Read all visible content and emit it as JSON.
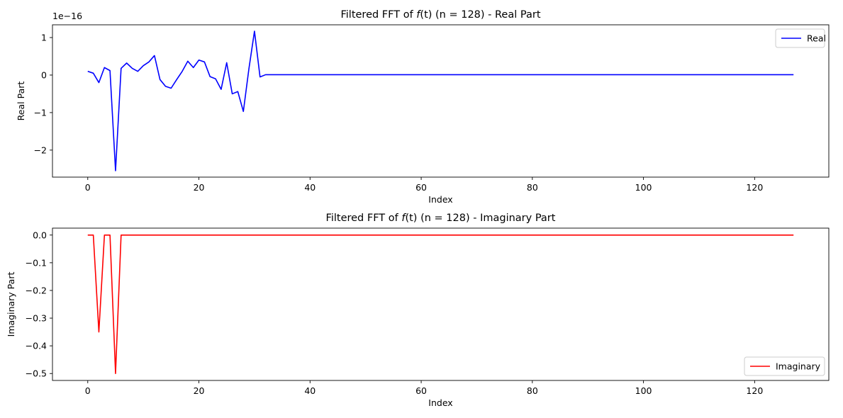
{
  "chart_data": [
    {
      "type": "line",
      "title": "Filtered FFT of f(t) (n = 128) - Real Part",
      "title_parts": {
        "prefix": "Filtered FFT of ",
        "func": "f",
        "arg": "(t)",
        "suffix": " (n = 128) - Real Part"
      },
      "xlabel": "Index",
      "ylabel": "Real Part",
      "offset_text": "1e−16",
      "xlim": [
        -6.35,
        133.35
      ],
      "ylim": [
        -2.72,
        1.34
      ],
      "xticks": [
        0,
        20,
        40,
        60,
        80,
        100,
        120
      ],
      "xtick_labels": [
        "0",
        "20",
        "40",
        "60",
        "80",
        "100",
        "120"
      ],
      "yticks": [
        -2,
        -1,
        0,
        1
      ],
      "ytick_labels": [
        "−2",
        "−1",
        "0",
        "1"
      ],
      "legend_position": "top-right",
      "series": [
        {
          "name": "Real",
          "color": "#0000ff",
          "x": [
            0,
            1,
            2,
            3,
            4,
            5,
            6,
            7,
            8,
            9,
            10,
            11,
            12,
            13,
            14,
            15,
            16,
            17,
            18,
            19,
            20,
            21,
            22,
            23,
            24,
            25,
            26,
            27,
            28,
            29,
            30,
            31,
            32,
            127
          ],
          "values": [
            0.1,
            0.05,
            -0.2,
            0.2,
            0.12,
            -2.55,
            0.18,
            0.32,
            0.18,
            0.1,
            0.25,
            0.35,
            0.52,
            -0.12,
            -0.3,
            -0.35,
            -0.12,
            0.1,
            0.37,
            0.2,
            0.4,
            0.35,
            -0.04,
            -0.1,
            -0.38,
            0.33,
            -0.5,
            -0.44,
            -0.97,
            0.17,
            1.17,
            -0.05,
            0.01,
            0.01
          ]
        }
      ]
    },
    {
      "type": "line",
      "title": "Filtered FFT of f(t) (n = 128) - Imaginary Part",
      "title_parts": {
        "prefix": "Filtered FFT of ",
        "func": "f",
        "arg": "(t)",
        "suffix": " (n = 128) - Imaginary Part"
      },
      "xlabel": "Index",
      "ylabel": "Imaginary Part",
      "xlim": [
        -6.35,
        133.35
      ],
      "ylim": [
        -0.525,
        0.025
      ],
      "xticks": [
        0,
        20,
        40,
        60,
        80,
        100,
        120
      ],
      "xtick_labels": [
        "0",
        "20",
        "40",
        "60",
        "80",
        "100",
        "120"
      ],
      "yticks": [
        0.0,
        -0.1,
        -0.2,
        -0.3,
        -0.4,
        -0.5
      ],
      "ytick_labels": [
        "0.0",
        "−0.1",
        "−0.2",
        "−0.3",
        "−0.4",
        "−0.5"
      ],
      "legend_position": "bottom-right",
      "series": [
        {
          "name": "Imaginary",
          "color": "#ff0000",
          "x": [
            0,
            1,
            2,
            3,
            4,
            5,
            6,
            127
          ],
          "values": [
            0,
            0,
            -0.35,
            0,
            0,
            -0.5,
            0,
            0
          ]
        }
      ]
    }
  ]
}
